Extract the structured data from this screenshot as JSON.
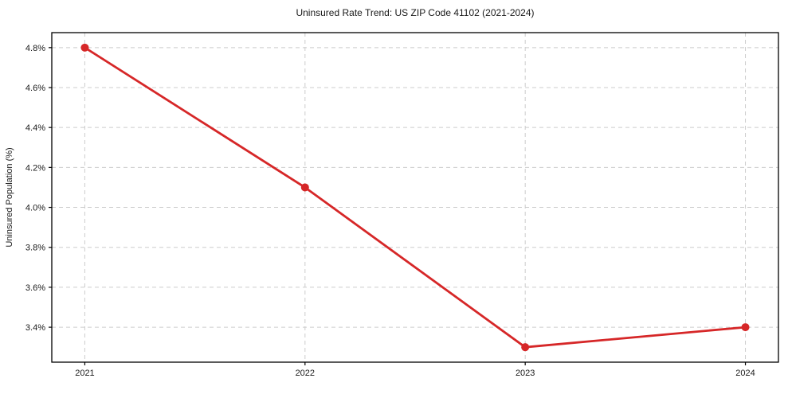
{
  "chart_data": {
    "type": "line",
    "title": "Uninsured Rate Trend: US ZIP Code 41102 (2021-2024)",
    "xlabel": "",
    "ylabel": "Uninsured Population (%)",
    "x": [
      2021,
      2022,
      2023,
      2024
    ],
    "x_tick_labels": [
      "2021",
      "2022",
      "2023",
      "2024"
    ],
    "series": [
      {
        "name": "Uninsured rate",
        "values": [
          4.8,
          4.1,
          3.3,
          3.4
        ]
      }
    ],
    "y_ticks": [
      3.4,
      3.6,
      3.8,
      4.0,
      4.2,
      4.4,
      4.6,
      4.8
    ],
    "y_tick_labels": [
      "3.4%",
      "3.6%",
      "3.8%",
      "4.0%",
      "4.2%",
      "4.4%",
      "4.6%",
      "4.8%"
    ],
    "xlim": [
      2020.85,
      2024.15
    ],
    "ylim": [
      3.225,
      4.875
    ],
    "grid": true,
    "grid_style": "dashed",
    "legend_position": "none",
    "marker": "circle",
    "colors": {
      "line": "#d62728",
      "marker": "#d62728",
      "grid": "#cccccc",
      "spine": "#000000",
      "text": "#1a1a1a",
      "background": "#ffffff"
    }
  }
}
